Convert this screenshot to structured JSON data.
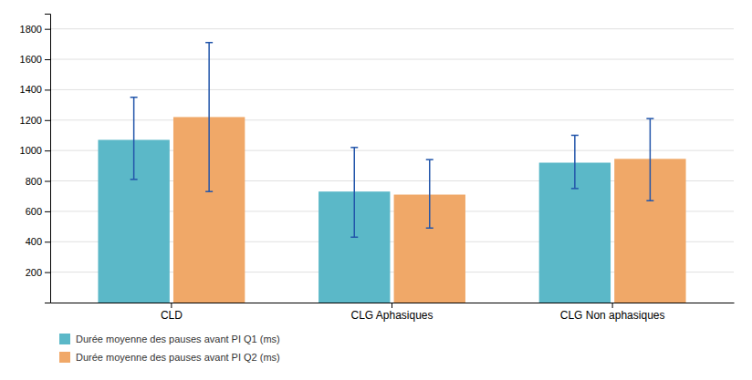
{
  "chart_data": {
    "type": "bar",
    "categories": [
      "CLD",
      "CLG Aphasiques",
      "CLG Non aphasiques"
    ],
    "series": [
      {
        "name": "Durée moyenne des pauses avant PI Q1 (ms)",
        "color": "#5BB8C8",
        "values": [
          1070,
          730,
          920
        ],
        "error_lower": [
          260,
          300,
          170
        ],
        "error_upper": [
          280,
          290,
          180
        ]
      },
      {
        "name": "Durée moyenne des pauses avant PI Q2 (ms)",
        "color": "#F0A868",
        "values": [
          1220,
          710,
          945
        ],
        "error_lower": [
          490,
          220,
          275
        ],
        "error_upper": [
          490,
          230,
          265
        ]
      }
    ],
    "ylim": [
      0,
      1900
    ],
    "yticks": [
      200,
      400,
      600,
      800,
      1000,
      1200,
      1400,
      1600,
      1800
    ],
    "grid": true,
    "legend": "bottom"
  }
}
